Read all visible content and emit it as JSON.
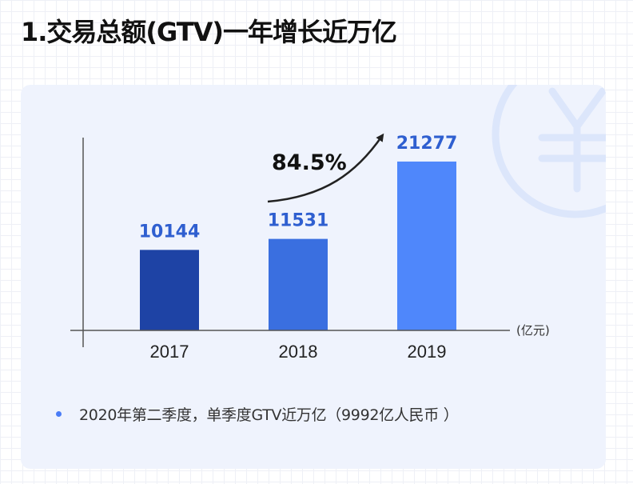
{
  "title": "1.交易总额(GTV)一年增长近万亿",
  "chart_data": {
    "type": "bar",
    "title": "",
    "xlabel": "",
    "ylabel": "",
    "unit_label": "(亿元)",
    "categories": [
      "2017",
      "2018",
      "2019"
    ],
    "values": [
      10144,
      11531,
      21277
    ],
    "value_labels": [
      "10144",
      "11531",
      "21277"
    ],
    "bar_colors": [
      "#1e43a5",
      "#3a6fe0",
      "#4f87fb"
    ],
    "ylim": [
      0,
      25000
    ],
    "grid": false,
    "growth_annotation": "84.5%"
  },
  "note": {
    "text": "2020年第二季度，单季度GTV近万亿（9992亿人民币 ）"
  },
  "colors": {
    "card_bg": "#eff3fd",
    "label_blue": "#2f5fd0",
    "axis": "#555555",
    "bullet": "#4a7cf6"
  },
  "decor_icon": "yuan-icon"
}
